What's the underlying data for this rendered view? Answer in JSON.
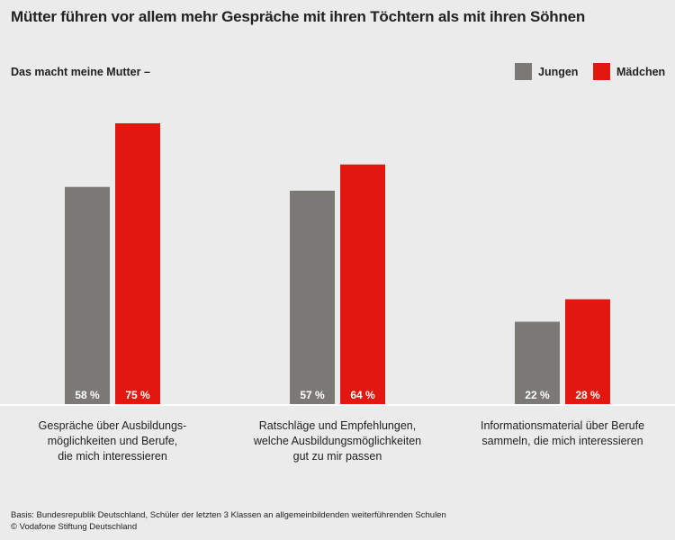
{
  "title": "Mütter führen vor allem mehr Gespräche mit ihren Töchtern als mit ihren Söhnen",
  "subtitle": "Das macht meine Mutter –",
  "colors": {
    "jungen": "#7a7976",
    "maedchen": "#e2170f",
    "background": "#ebebeb"
  },
  "chart_data": {
    "type": "bar",
    "categories": [
      "Gespräche über Ausbildungs-\nmöglichkeiten und Berufe,\ndie mich interessieren",
      "Ratschläge und Empfehlungen,\nwelche Ausbildungsmöglichkeiten\ngut zu mir passen",
      "Informationsmaterial über Berufe\nsammeln, die mich interessieren"
    ],
    "series": [
      {
        "name": "Jungen",
        "values": [
          58,
          57,
          22
        ],
        "labels": [
          "58 %",
          "57 %",
          "22 %"
        ]
      },
      {
        "name": "Mädchen",
        "values": [
          75,
          64,
          28
        ],
        "labels": [
          "75 %",
          "64 %",
          "28 %"
        ]
      }
    ],
    "ylim": [
      0,
      75
    ],
    "legend": "top-right",
    "grid": false
  },
  "footer": {
    "basis": "Basis: Bundesrepublik Deutschland, Schüler der letzten 3 Klassen an allgemeinbildenden weiterführenden Schulen",
    "copyright": "© Vodafone Stiftung Deutschland"
  }
}
